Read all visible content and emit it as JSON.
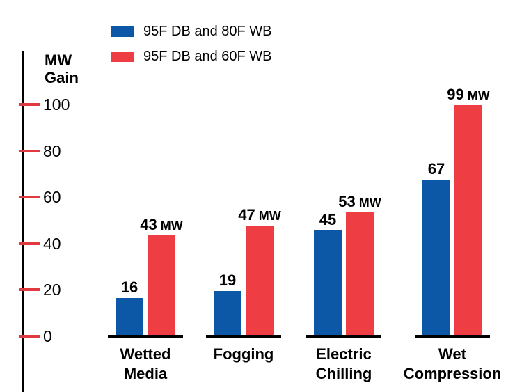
{
  "chart_data": {
    "type": "bar",
    "ylabel": "MW\nGain",
    "categories": [
      "Wetted\nMedia",
      "Fogging",
      "Electric\nChilling",
      "Wet\nCompression"
    ],
    "series": [
      {
        "name": "95F DB and 80F WB",
        "color": "#0d57a7",
        "values": [
          16,
          19,
          45,
          67
        ],
        "value_labels": [
          "16",
          "19",
          "45",
          "67"
        ]
      },
      {
        "name": "95F DB and 60F WB",
        "color": "#ee3e44",
        "values": [
          43,
          47,
          53,
          99
        ],
        "value_labels": [
          "43 MW",
          "47 MW",
          "53 MW",
          "99 MW"
        ]
      }
    ],
    "yticks": [
      0,
      20,
      40,
      60,
      80,
      100
    ],
    "ylim": [
      0,
      100
    ],
    "grid": false,
    "legend_position": "top",
    "axis_color": "#000000",
    "tick_color": "#e03a3e",
    "text_color": "#000000"
  }
}
